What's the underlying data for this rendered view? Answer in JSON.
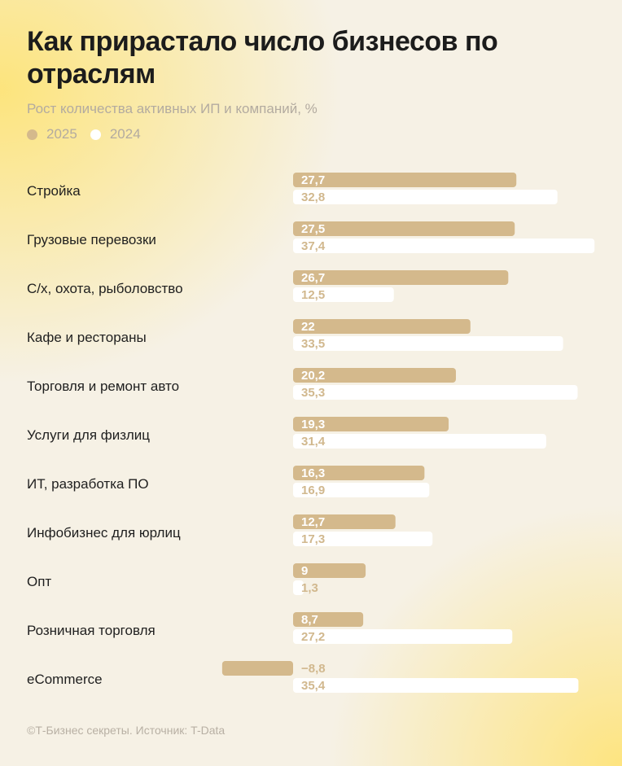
{
  "title": "Как прирастало число бизнесов по отраслям",
  "subtitle": "Рост количества активных ИП и компаний, %",
  "footer": "©Т-Бизнес секреты. Источник: T-Data",
  "colors": {
    "series_2025": "#d4b98c",
    "series_2024": "#ffffff",
    "value_text": "#d1b88e",
    "category_text": "#1f1f1f",
    "muted_text": "#b3aba0"
  },
  "chart_data": {
    "type": "bar",
    "orientation": "horizontal",
    "title": "Как прирастало число бизнесов по отраслям",
    "subtitle": "Рост количества активных ИП и компаний, %",
    "legend_position": "top-left",
    "grid": false,
    "categories": [
      "Стройка",
      "Грузовые перевозки",
      "С/х, охота, рыболовство",
      "Кафе и рестораны",
      "Торговля и ремонт авто",
      "Услуги для физлиц",
      "ИТ, разработка ПО",
      "Инфобизнес для юрлиц",
      "Опт",
      "Розничная торговля",
      "eCommerce"
    ],
    "series": [
      {
        "name": "2025",
        "color": "#d4b98c",
        "values": [
          27.7,
          27.5,
          26.7,
          22,
          20.2,
          19.3,
          16.3,
          12.7,
          9,
          8.7,
          -8.8
        ],
        "labels": [
          "27,7",
          "27,5",
          "26,7",
          "22",
          "20,2",
          "19,3",
          "16,3",
          "12,7",
          "9",
          "8,7",
          "−8,8"
        ]
      },
      {
        "name": "2024",
        "color": "#ffffff",
        "values": [
          32.8,
          37.4,
          12.5,
          33.5,
          35.3,
          31.4,
          16.9,
          17.3,
          1.3,
          27.2,
          35.4
        ],
        "labels": [
          "32,8",
          "37,4",
          "12,5",
          "33,5",
          "35,3",
          "31,4",
          "16,9",
          "17,3",
          "1,3",
          "27,2",
          "35,4"
        ]
      }
    ],
    "xlim": [
      -10,
      38
    ]
  }
}
